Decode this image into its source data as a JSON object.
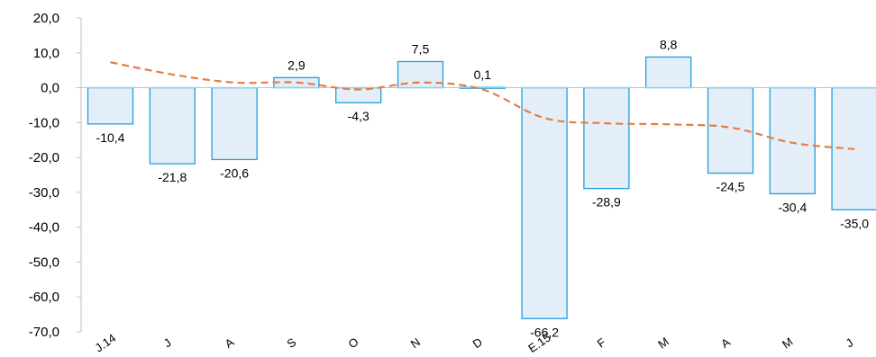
{
  "chart_data": {
    "type": "bar",
    "categories": [
      "J.14",
      "J",
      "A",
      "S",
      "O",
      "N",
      "D",
      "E.15",
      "F",
      "M",
      "A",
      "M",
      "J"
    ],
    "series": [
      {
        "type": "bar",
        "values": [
          -10.4,
          -21.8,
          -20.6,
          2.9,
          -4.3,
          7.5,
          0.1,
          -66.2,
          -28.9,
          8.8,
          -24.5,
          -30.4,
          -35.0
        ]
      },
      {
        "type": "line",
        "values": [
          7.3,
          3.8,
          1.5,
          1.5,
          -0.5,
          1.5,
          -0.5,
          -8.7,
          -10.2,
          -10.5,
          -11.4,
          -15.8,
          -17.6
        ]
      }
    ],
    "data_labels": [
      "-10,4",
      "-21,8",
      "-20,6",
      "2,9",
      "-4,3",
      "7,5",
      "0,1",
      "-66,2",
      "-28,9",
      "8,8",
      "-24,5",
      "-30,4",
      "-35,0"
    ],
    "y_ticks": [
      "20,0",
      "10,0",
      "0,0",
      "-10,0",
      "-20,0",
      "-30,0",
      "-40,0",
      "-50,0",
      "-60,0",
      "-70,0"
    ],
    "ylim": [
      -70,
      20
    ],
    "title": "",
    "xlabel": "",
    "ylabel": "",
    "grid": false,
    "legend": "none",
    "colors": {
      "bar_fill": "#e3eef8",
      "bar_stroke": "#1fa0dc",
      "line": "#e87d3e",
      "axis": "#bfbfbf"
    }
  }
}
